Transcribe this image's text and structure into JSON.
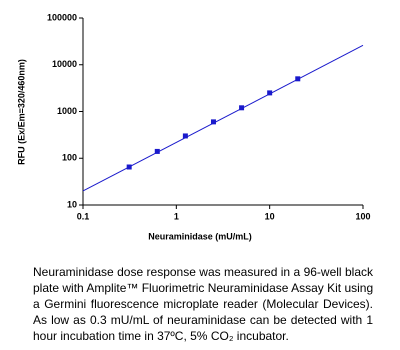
{
  "chart_data": {
    "type": "scatter",
    "x_label": "Neuraminidase (mU/mL)",
    "y_label": "RFU (Ex/Em=320/460nm)",
    "xlim": [
      0.1,
      100
    ],
    "ylim": [
      10,
      100000
    ],
    "xticks": [
      0.1,
      1,
      10,
      100
    ],
    "yticks": [
      10,
      100,
      1000,
      10000,
      100000
    ],
    "xscale": "log",
    "yscale": "log",
    "series": [
      {
        "x": [
          0.3125,
          0.625,
          1.25,
          2.5,
          5,
          10,
          20
        ],
        "values": [
          65,
          140,
          300,
          600,
          1200,
          2500,
          5000
        ],
        "color": "#1a1acc",
        "mode": "markers"
      },
      {
        "x": [
          0.1,
          100
        ],
        "values": [
          20,
          26000
        ],
        "color": "#1a1acc",
        "mode": "line"
      }
    ]
  },
  "caption": [
    "Neuraminidase dose response was measured in a 96-well black",
    "plate with Amplite™ Fluorimetric Neuraminidase Assay Kit using",
    "a Germini fluorescence microplate reader (Molecular Devices).",
    "As low as 0.3 mU/mL of neuraminidase can be detected with 1",
    "hour incubation time in 37ºC, 5% CO₂ incubator."
  ]
}
